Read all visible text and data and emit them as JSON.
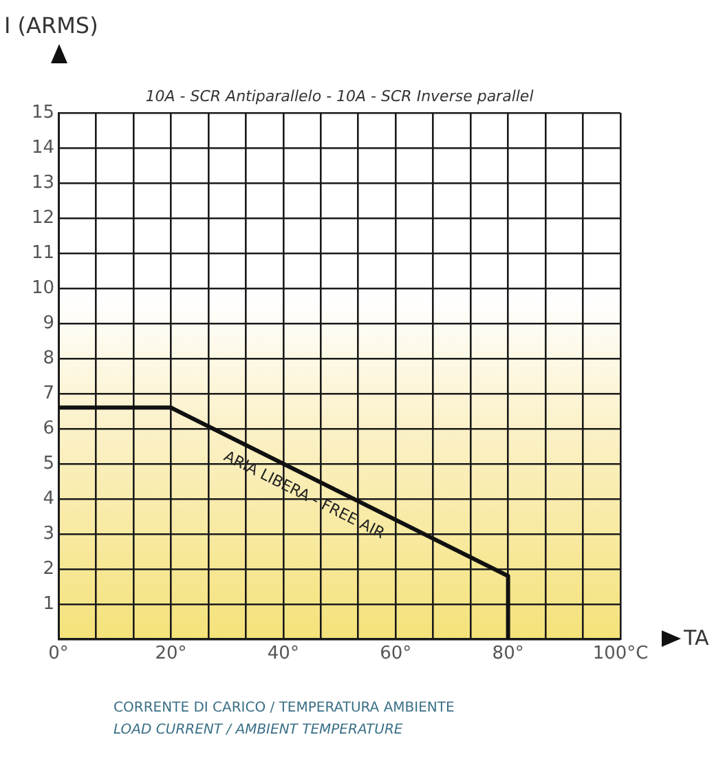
{
  "chart_data": {
    "type": "line",
    "title": "10A - SCR Antiparallelo - 10A - SCR Inverse parallel",
    "xlabel": "TA",
    "ylabel": "I (ARMS)",
    "x": [
      0,
      20,
      80,
      80
    ],
    "series": [
      {
        "color": "#111111",
        "values": [
          6.6,
          6.6,
          1.8,
          0
        ]
      }
    ],
    "xlim": [
      0,
      100
    ],
    "xticks": [
      {
        "value": 0,
        "label": "0°"
      },
      {
        "value": 6.667,
        "label": null
      },
      {
        "value": 13.333,
        "label": null
      },
      {
        "value": 20,
        "label": "20°"
      },
      {
        "value": 26.667,
        "label": null
      },
      {
        "value": 33.333,
        "label": null
      },
      {
        "value": 40,
        "label": "40°"
      },
      {
        "value": 46.667,
        "label": null
      },
      {
        "value": 53.333,
        "label": null
      },
      {
        "value": 60,
        "label": "60°"
      },
      {
        "value": 66.667,
        "label": null
      },
      {
        "value": 73.333,
        "label": null
      },
      {
        "value": 80,
        "label": "80°"
      },
      {
        "value": 86.667,
        "label": null
      },
      {
        "value": 93.333,
        "label": null
      },
      {
        "value": 100,
        "label": "100°C"
      }
    ],
    "ylim": [
      0,
      15
    ],
    "yticks": [
      {
        "value": 0,
        "label": null
      },
      1,
      2,
      3,
      4,
      5,
      6,
      7,
      8,
      9,
      10,
      11,
      12,
      13,
      14,
      15
    ],
    "grid": true,
    "marker": "none",
    "line_style": "solid",
    "legend": false,
    "annotations": [
      "ARIA LIBERA - FREE AIR",
      "CORRENTE DI CARICO / TEMPERATURA AMBIENTE",
      "LOAD CURRENT / AMBIENT TEMPERATURE"
    ]
  }
}
